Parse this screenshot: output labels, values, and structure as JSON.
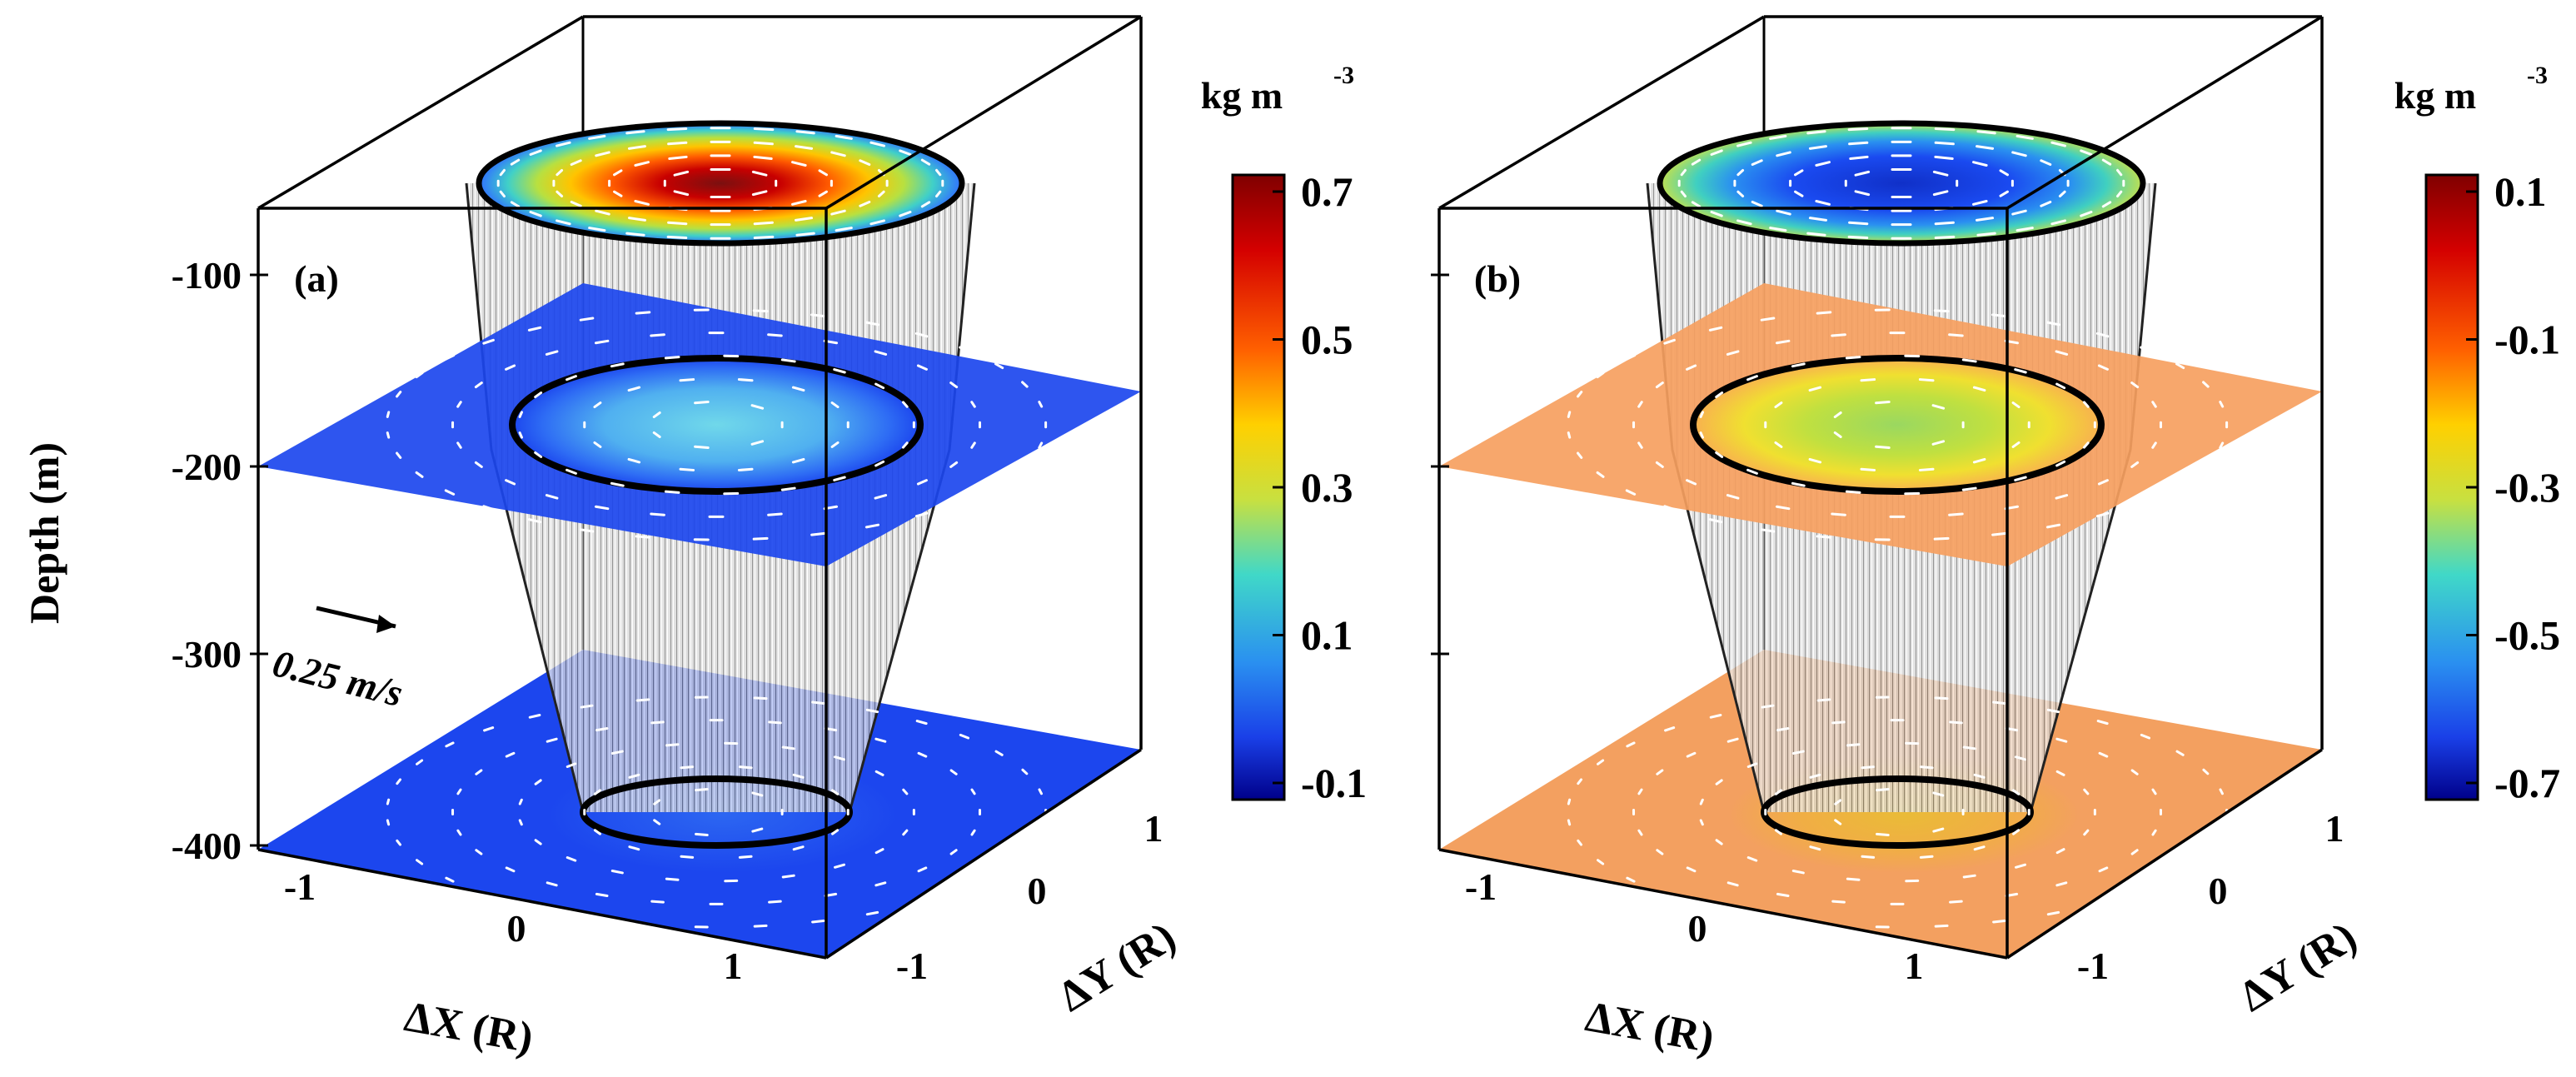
{
  "figure": {
    "panels": [
      {
        "label": "(a)",
        "colorbar_title": "kg m",
        "colorbar_exp": "-3",
        "colorbar_ticks": [
          "0.7",
          "0.5",
          "0.3",
          "0.1",
          "-0.1"
        ],
        "top_color": "#a80000",
        "mid_color": "#5ec8e8",
        "plane_color": "#1c46ee",
        "bottom_color": "#1c46ee",
        "ylabel": "Depth (m)",
        "depth_ticks": [
          "-100",
          "-200",
          "-300",
          "-400"
        ],
        "scale_label": "0.25 m/s",
        "xlabel": "ΔX (R)",
        "ylabel2": "ΔY (R)",
        "x_ticks": [
          "-1",
          "0",
          "1"
        ],
        "y_ticks": [
          "-1",
          "0",
          "1"
        ]
      },
      {
        "label": "(b)",
        "colorbar_title": "kg m",
        "colorbar_exp": "-3",
        "colorbar_ticks": [
          "0.1",
          "-0.1",
          "-0.3",
          "-0.5",
          "-0.7"
        ],
        "top_color": "#1a3fe0",
        "mid_color": "#c0dc40",
        "plane_color": "#f6a060",
        "bottom_color": "#f3a060",
        "xlabel": "ΔX (R)",
        "ylabel2": "ΔY (R)",
        "x_ticks": [
          "-1",
          "0",
          "1"
        ],
        "y_ticks": [
          "-1",
          "0",
          "1"
        ]
      }
    ]
  },
  "chart_data": [
    {
      "type": "heatmap",
      "title": "(a)",
      "colorbar": {
        "label": "kg m-3",
        "min": -0.1,
        "max": 0.7,
        "ticks": [
          0.7,
          0.5,
          0.3,
          0.1,
          -0.1
        ]
      },
      "zlabel": "Depth (m)",
      "zlim": [
        -400,
        -50
      ],
      "z_ticks": [
        -100,
        -200,
        -300,
        -400
      ],
      "xlabel": "ΔX (R)",
      "x_ticks": [
        -1,
        0,
        1
      ],
      "ylabel": "ΔY (R)",
      "y_ticks": [
        -1,
        0,
        1
      ],
      "layers": [
        {
          "depth": -50,
          "center_value": 0.65,
          "edge_value": 0.0
        },
        {
          "depth": -200,
          "center_value": 0.25,
          "edge_value": -0.05
        },
        {
          "depth": -400,
          "center_value": 0.0,
          "edge_value": -0.05
        }
      ],
      "velocity_scale": "0.25 m/s"
    },
    {
      "type": "heatmap",
      "title": "(b)",
      "colorbar": {
        "label": "kg m-3",
        "min": -0.7,
        "max": 0.1,
        "ticks": [
          0.1,
          -0.1,
          -0.3,
          -0.5,
          -0.7
        ]
      },
      "zlim": [
        -400,
        -50
      ],
      "xlabel": "ΔX (R)",
      "x_ticks": [
        -1,
        0,
        1
      ],
      "ylabel": "ΔY (R)",
      "y_ticks": [
        -1,
        0,
        1
      ],
      "layers": [
        {
          "depth": -50,
          "center_value": -0.55,
          "edge_value": -0.3
        },
        {
          "depth": -200,
          "center_value": -0.2,
          "edge_value": 0.0
        },
        {
          "depth": -400,
          "center_value": -0.1,
          "edge_value": 0.0
        }
      ]
    }
  ]
}
